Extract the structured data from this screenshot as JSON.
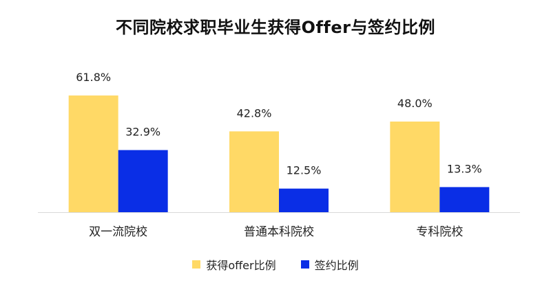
{
  "chart_data": {
    "type": "bar",
    "title": "不同院校求职毕业生获得Offer与签约比例",
    "categories": [
      "双一流院校",
      "普通本科院校",
      "专科院校"
    ],
    "series": [
      {
        "name": "获得offer比例",
        "values": [
          61.8,
          42.8,
          48.0
        ],
        "labels": [
          "61.8%",
          "42.8%",
          "48.0%"
        ],
        "color": "#FFD966"
      },
      {
        "name": "签约比例",
        "values": [
          32.9,
          12.5,
          13.3
        ],
        "labels": [
          "32.9%",
          "12.5%",
          "13.3%"
        ],
        "color": "#0A2EE6"
      }
    ],
    "ylim": [
      0,
      70
    ],
    "xlabel": "",
    "ylabel": "",
    "grid": false,
    "legend_position": "bottom"
  }
}
